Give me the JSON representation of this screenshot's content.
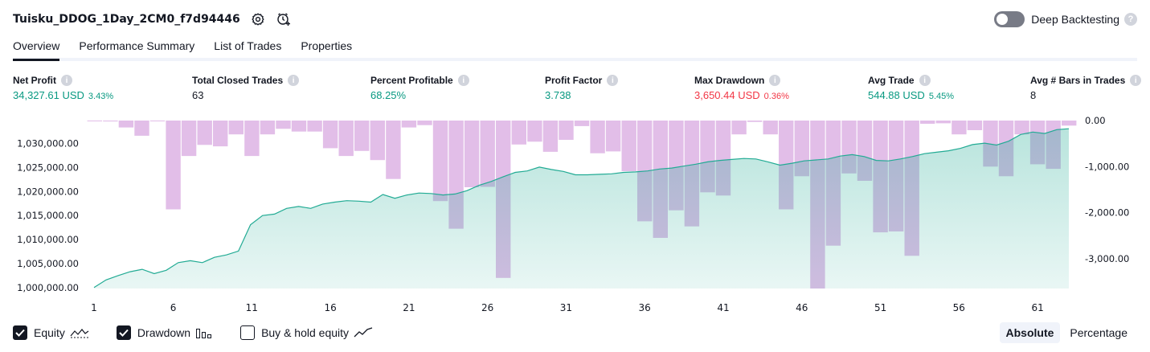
{
  "header": {
    "title": "Tuisku_DDOG_1Day_2CM0_f7d94446",
    "deep_backtesting_label": "Deep Backtesting",
    "help_glyph": "?"
  },
  "tabs": [
    {
      "label": "Overview",
      "active": true
    },
    {
      "label": "Performance Summary",
      "active": false
    },
    {
      "label": "List of Trades",
      "active": false
    },
    {
      "label": "Properties",
      "active": false
    }
  ],
  "metrics": {
    "info_glyph": "i",
    "net_profit": {
      "label": "Net Profit",
      "value": "34,327.61 USD",
      "pct": "3.43%"
    },
    "total_closed_trades": {
      "label": "Total Closed Trades",
      "value": "63"
    },
    "percent_profitable": {
      "label": "Percent Profitable",
      "value": "68.25%"
    },
    "profit_factor": {
      "label": "Profit Factor",
      "value": "3.738"
    },
    "max_drawdown": {
      "label": "Max Drawdown",
      "value": "3,650.44 USD",
      "pct": "0.36%"
    },
    "avg_trade": {
      "label": "Avg Trade",
      "value": "544.88 USD",
      "pct": "5.45%"
    },
    "avg_bars": {
      "label": "Avg # Bars in Trades",
      "value": "8"
    }
  },
  "colors": {
    "positive": "#089981",
    "negative": "#f23645",
    "equity_line": "#22ab94",
    "drawdown_bar": "#ce93d8",
    "text": "#131722"
  },
  "legend": {
    "equity": {
      "label": "Equity",
      "checked": true
    },
    "drawdown": {
      "label": "Drawdown",
      "checked": true
    },
    "buy_hold": {
      "label": "Buy & hold equity",
      "checked": false
    }
  },
  "mode": {
    "absolute": "Absolute",
    "percentage": "Percentage",
    "selected": "Absolute"
  },
  "chart_data": {
    "type": "area",
    "x_ticks": [
      1,
      6,
      11,
      16,
      21,
      26,
      31,
      36,
      41,
      46,
      51,
      56,
      61
    ],
    "left_axis": {
      "ticks": [
        "1,000,000.00",
        "1,005,000.00",
        "1,010,000.00",
        "1,015,000.00",
        "1,020,000.00",
        "1,025,000.00",
        "1,030,000.00"
      ],
      "ylim": [
        999800,
        1034800
      ]
    },
    "right_axis": {
      "ticks": [
        "0.00",
        "-1,000.00",
        "-2,000.00",
        "-3,000.00"
      ],
      "ylim": [
        -3650,
        0
      ]
    },
    "equity": [
      1000000,
      1001600,
      1002500,
      1003300,
      1003800,
      1002900,
      1003600,
      1005200,
      1005600,
      1005200,
      1006300,
      1006800,
      1007600,
      1013100,
      1015000,
      1015300,
      1016500,
      1016900,
      1016500,
      1017400,
      1017800,
      1018100,
      1018000,
      1017800,
      1019400,
      1018600,
      1019300,
      1019700,
      1019600,
      1019300,
      1019500,
      1020200,
      1021300,
      1022100,
      1023100,
      1024000,
      1024300,
      1025100,
      1024600,
      1024200,
      1023500,
      1023500,
      1023600,
      1023700,
      1024000,
      1024100,
      1024300,
      1024700,
      1024900,
      1025300,
      1025700,
      1026200,
      1026500,
      1026700,
      1026900,
      1026800,
      1026200,
      1025500,
      1025900,
      1026400,
      1026600,
      1026800,
      1027400,
      1027700,
      1027300,
      1026500,
      1026400,
      1026800,
      1027300,
      1027900,
      1028200,
      1028500,
      1029000,
      1029800,
      1030100,
      1029700,
      1030500,
      1031900,
      1032400,
      1032100,
      1032900,
      1033100
    ],
    "drawdown": [
      -10,
      -20,
      -150,
      -330,
      -10,
      -1930,
      -770,
      -530,
      -560,
      -300,
      -770,
      -300,
      -180,
      -240,
      -240,
      -600,
      -770,
      -660,
      -860,
      -1270,
      -150,
      -100,
      -1750,
      -2350,
      -1450,
      -1440,
      -3420,
      -520,
      -460,
      -680,
      -420,
      -120,
      -710,
      -670,
      -1100,
      -2190,
      -2550,
      -1950,
      -2300,
      -1560,
      -1630,
      -300,
      -30,
      -300,
      -1930,
      -1210,
      -3650,
      -2720,
      -1150,
      -1310,
      -2430,
      -2410,
      -2940,
      -70,
      -60,
      -300,
      -210,
      -1000,
      -1210,
      -300,
      -950,
      -1050,
      -110
    ],
    "series": [
      {
        "name": "Equity"
      },
      {
        "name": "Drawdown"
      }
    ]
  }
}
